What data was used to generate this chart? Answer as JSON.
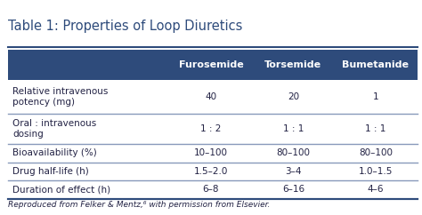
{
  "title": "Table 1: Properties of Loop Diuretics",
  "title_fontsize": 10.5,
  "header_bg_color": "#2E4B7B",
  "header_text_color": "#FFFFFF",
  "header_labels": [
    "Furosemide",
    "Torsemide",
    "Bumetanide"
  ],
  "row_labels": [
    "Relative intravenous\npotency (mg)",
    "Oral : intravenous\ndosing",
    "Bioavailability (%)",
    "Drug half-life (h)",
    "Duration of effect (h)"
  ],
  "row_data": [
    [
      "40",
      "20",
      "1"
    ],
    [
      "1 : 2",
      "1 : 1",
      "1 : 1"
    ],
    [
      "10–100",
      "80–100",
      "80–100"
    ],
    [
      "1.5–2.0",
      "3–4",
      "1.0–1.5"
    ],
    [
      "6–8",
      "6–16",
      "4–6"
    ]
  ],
  "footer_text": "Reproduced from Felker & Mentz,⁶ with permission from Elsevier.",
  "body_text_color": "#222244",
  "bg_color": "#FFFFFF",
  "divider_color": "#8899BB",
  "outer_border_color": "#2E4B7B",
  "title_color": "#2E4B7B",
  "font_size": 7.5,
  "header_font_size": 8.0,
  "footer_font_size": 6.5
}
